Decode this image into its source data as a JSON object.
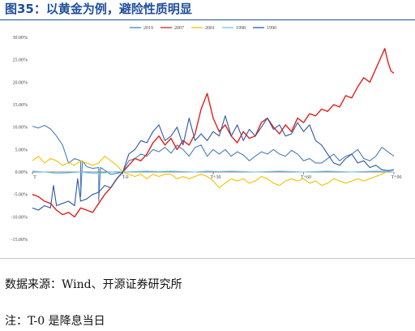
{
  "title": "图35：以黄金为例，避险性质明显",
  "source": "数据来源：Wind、开源证券研究所",
  "note": "注：T-0 是降息当日",
  "chart_data": {
    "type": "line",
    "ylim": [
      -15,
      30
    ],
    "yticks": [
      30,
      25,
      20,
      15,
      10,
      5,
      0,
      -5,
      -10,
      -15
    ],
    "ytick_labels": [
      "30.00%",
      "25.00%",
      "20.00%",
      "15.00%",
      "10.00%",
      "5.00%",
      "0.00%",
      "-5.00%",
      "-10.00%",
      "-15.00%"
    ],
    "xlim": [
      -30,
      90
    ],
    "xticks": [
      -30,
      0,
      30,
      60,
      90
    ],
    "xtick_labels": [
      "T",
      "T-0",
      "T+30",
      "T+60",
      "T+90"
    ],
    "grid": false,
    "legend": "top-center",
    "series": [
      {
        "name": "2019",
        "color": "#4a7ebb",
        "points": [
          [
            -30,
            10.2
          ],
          [
            -28,
            9.8
          ],
          [
            -26,
            10.4
          ],
          [
            -24,
            9.6
          ],
          [
            -22,
            8.0
          ],
          [
            -20,
            6.0
          ],
          [
            -18,
            2.0
          ],
          [
            -16,
            3.0
          ],
          [
            -14,
            2.5
          ],
          [
            -12,
            1.2
          ],
          [
            -10,
            0.8
          ],
          [
            -8,
            1.0
          ],
          [
            -6,
            0.4
          ],
          [
            -4,
            -0.5
          ],
          [
            -2,
            -0.3
          ],
          [
            0,
            0
          ],
          [
            2,
            2.5
          ],
          [
            4,
            3.0
          ],
          [
            6,
            4.0
          ],
          [
            8,
            3.5
          ],
          [
            10,
            5.0
          ],
          [
            12,
            4.5
          ],
          [
            14,
            5.5
          ],
          [
            16,
            4.2
          ],
          [
            18,
            6.0
          ],
          [
            20,
            5.0
          ],
          [
            22,
            3.5
          ],
          [
            24,
            5.5
          ],
          [
            26,
            6.0
          ],
          [
            28,
            3.5
          ],
          [
            30,
            5.0
          ],
          [
            32,
            4.0
          ],
          [
            34,
            5.0
          ],
          [
            36,
            3.5
          ],
          [
            38,
            4.5
          ],
          [
            40,
            3.8
          ],
          [
            42,
            2.5
          ],
          [
            44,
            3.5
          ],
          [
            46,
            4.5
          ],
          [
            48,
            4.0
          ],
          [
            50,
            5.0
          ],
          [
            52,
            4.0
          ],
          [
            54,
            3.5
          ],
          [
            56,
            4.8
          ],
          [
            58,
            4.0
          ],
          [
            60,
            2.5
          ],
          [
            62,
            3.0
          ],
          [
            64,
            2.0
          ],
          [
            66,
            2.0
          ],
          [
            68,
            3.0
          ],
          [
            70,
            4.0
          ],
          [
            72,
            2.5
          ],
          [
            74,
            3.5
          ],
          [
            76,
            4.0
          ],
          [
            78,
            5.0
          ],
          [
            80,
            3.0
          ],
          [
            82,
            2.5
          ],
          [
            84,
            3.5
          ],
          [
            86,
            5.5
          ],
          [
            88,
            4.5
          ],
          [
            90,
            3.5
          ]
        ]
      },
      {
        "name": "2007",
        "color": "#e0201b",
        "points": [
          [
            -30,
            -5.0
          ],
          [
            -28,
            -5.5
          ],
          [
            -26,
            -6.5
          ],
          [
            -24,
            -7.0
          ],
          [
            -22,
            -8.5
          ],
          [
            -20,
            -9.5
          ],
          [
            -18,
            -9.0
          ],
          [
            -16,
            -10.0
          ],
          [
            -14,
            -8.0
          ],
          [
            -12,
            -8.5
          ],
          [
            -10,
            -9.0
          ],
          [
            -8,
            -7.0
          ],
          [
            -6,
            -5.0
          ],
          [
            -4,
            -3.5
          ],
          [
            -2,
            -1.5
          ],
          [
            0,
            0
          ],
          [
            2,
            1.5
          ],
          [
            4,
            3.0
          ],
          [
            6,
            2.5
          ],
          [
            8,
            4.0
          ],
          [
            10,
            6.5
          ],
          [
            12,
            8.0
          ],
          [
            14,
            6.0
          ],
          [
            16,
            7.5
          ],
          [
            18,
            5.0
          ],
          [
            20,
            7.0
          ],
          [
            22,
            6.0
          ],
          [
            24,
            8.5
          ],
          [
            26,
            14.0
          ],
          [
            28,
            17.5
          ],
          [
            30,
            12.0
          ],
          [
            32,
            9.0
          ],
          [
            34,
            10.5
          ],
          [
            36,
            8.0
          ],
          [
            38,
            6.5
          ],
          [
            40,
            9.0
          ],
          [
            42,
            7.5
          ],
          [
            44,
            8.0
          ],
          [
            46,
            11.0
          ],
          [
            48,
            12.0
          ],
          [
            50,
            10.0
          ],
          [
            52,
            8.5
          ],
          [
            54,
            10.5
          ],
          [
            56,
            9.0
          ],
          [
            58,
            12.0
          ],
          [
            60,
            11.0
          ],
          [
            62,
            13.0
          ],
          [
            64,
            12.5
          ],
          [
            66,
            14.0
          ],
          [
            68,
            13.5
          ],
          [
            70,
            15.0
          ],
          [
            72,
            14.5
          ],
          [
            74,
            17.0
          ],
          [
            76,
            16.5
          ],
          [
            78,
            19.0
          ],
          [
            80,
            21.0
          ],
          [
            82,
            20.0
          ],
          [
            84,
            23.0
          ],
          [
            86,
            26.0
          ],
          [
            87,
            27.5
          ],
          [
            88,
            24.5
          ],
          [
            89,
            22.5
          ],
          [
            90,
            22.0
          ]
        ]
      },
      {
        "name": "2001",
        "color": "#f2c200",
        "points": [
          [
            -30,
            2.5
          ],
          [
            -28,
            3.5
          ],
          [
            -26,
            2.0
          ],
          [
            -24,
            3.0
          ],
          [
            -22,
            2.5
          ],
          [
            -20,
            1.5
          ],
          [
            -18,
            2.0
          ],
          [
            -16,
            1.5
          ],
          [
            -14,
            2.5
          ],
          [
            -12,
            2.0
          ],
          [
            -10,
            1.5
          ],
          [
            -8,
            2.0
          ],
          [
            -6,
            3.5
          ],
          [
            -4,
            2.5
          ],
          [
            -2,
            1.5
          ],
          [
            0,
            0
          ],
          [
            2,
            -0.5
          ],
          [
            4,
            -1.0
          ],
          [
            6,
            -0.5
          ],
          [
            8,
            -1.5
          ],
          [
            10,
            -0.5
          ],
          [
            12,
            -1.0
          ],
          [
            14,
            -0.5
          ],
          [
            16,
            -0.5
          ],
          [
            18,
            -1.5
          ],
          [
            20,
            -1.0
          ],
          [
            22,
            -1.5
          ],
          [
            24,
            -1.0
          ],
          [
            26,
            -0.5
          ],
          [
            28,
            -1.0
          ],
          [
            30,
            -2.0
          ],
          [
            32,
            -3.5
          ],
          [
            34,
            -2.5
          ],
          [
            36,
            -1.5
          ],
          [
            38,
            -2.0
          ],
          [
            40,
            -1.5
          ],
          [
            42,
            -2.5
          ],
          [
            44,
            -2.0
          ],
          [
            46,
            -1.0
          ],
          [
            48,
            -1.5
          ],
          [
            50,
            -2.5
          ],
          [
            52,
            -3.0
          ],
          [
            54,
            -2.0
          ],
          [
            56,
            -1.5
          ],
          [
            58,
            -2.0
          ],
          [
            60,
            -1.5
          ],
          [
            62,
            -2.5
          ],
          [
            64,
            -2.0
          ],
          [
            66,
            -3.0
          ],
          [
            68,
            -2.5
          ],
          [
            70,
            -1.5
          ],
          [
            72,
            -2.0
          ],
          [
            74,
            -2.5
          ],
          [
            76,
            -2.0
          ],
          [
            78,
            -1.5
          ],
          [
            80,
            -2.0
          ],
          [
            82,
            -1.5
          ],
          [
            84,
            -1.0
          ],
          [
            86,
            -0.5
          ],
          [
            88,
            0.2
          ],
          [
            90,
            0.5
          ]
        ]
      },
      {
        "name": "1998",
        "color": "#6fc4ea",
        "points": [
          [
            -30,
            0.2
          ],
          [
            -26,
            0.0
          ],
          [
            -22,
            -0.3
          ],
          [
            -18,
            -0.2
          ],
          [
            -14,
            0.0
          ],
          [
            -10,
            -0.3
          ],
          [
            -6,
            -0.2
          ],
          [
            -2,
            0.1
          ],
          [
            0,
            0
          ],
          [
            4,
            0.1
          ],
          [
            8,
            0.2
          ],
          [
            12,
            0.1
          ],
          [
            16,
            0.2
          ],
          [
            20,
            0.1
          ],
          [
            24,
            0.0
          ],
          [
            28,
            0.2
          ],
          [
            32,
            0.1
          ],
          [
            36,
            0.2
          ],
          [
            40,
            0.1
          ],
          [
            44,
            0.0
          ],
          [
            48,
            0.1
          ],
          [
            52,
            0.2
          ],
          [
            56,
            0.1
          ],
          [
            60,
            0.0
          ],
          [
            64,
            0.1
          ],
          [
            68,
            0.2
          ],
          [
            72,
            0.1
          ],
          [
            76,
            0.0
          ],
          [
            80,
            0.1
          ],
          [
            84,
            0.2
          ],
          [
            88,
            0.1
          ],
          [
            90,
            0.0
          ]
        ]
      },
      {
        "name": "1990",
        "color": "#3057a6",
        "points": [
          [
            -30,
            -8.0
          ],
          [
            -28,
            -8.5
          ],
          [
            -26,
            -7.5
          ],
          [
            -24,
            -8.0
          ],
          [
            -23,
            -3.0
          ],
          [
            -22,
            -7.5
          ],
          [
            -20,
            -7.0
          ],
          [
            -18,
            -6.5
          ],
          [
            -16,
            -7.5
          ],
          [
            -15,
            -1.5
          ],
          [
            -14,
            -6.5
          ],
          [
            -12,
            -6.0
          ],
          [
            -10,
            -5.0
          ],
          [
            -8,
            -4.5
          ],
          [
            -6,
            -3.0
          ],
          [
            -4,
            -3.5
          ],
          [
            -2,
            -1.5
          ],
          [
            0,
            0
          ],
          [
            2,
            4.0
          ],
          [
            4,
            5.0
          ],
          [
            6,
            7.0
          ],
          [
            8,
            6.5
          ],
          [
            10,
            9.0
          ],
          [
            12,
            10.5
          ],
          [
            14,
            7.0
          ],
          [
            16,
            8.0
          ],
          [
            18,
            10.0
          ],
          [
            20,
            6.0
          ],
          [
            22,
            12.0
          ],
          [
            24,
            7.0
          ],
          [
            26,
            8.5
          ],
          [
            28,
            7.0
          ],
          [
            30,
            9.0
          ],
          [
            32,
            8.0
          ],
          [
            34,
            12.5
          ],
          [
            36,
            8.0
          ],
          [
            38,
            10.5
          ],
          [
            40,
            7.0
          ],
          [
            42,
            9.5
          ],
          [
            44,
            8.0
          ],
          [
            46,
            10.0
          ],
          [
            48,
            12.0
          ],
          [
            50,
            9.5
          ],
          [
            52,
            10.5
          ],
          [
            54,
            8.0
          ],
          [
            56,
            8.5
          ],
          [
            58,
            11.0
          ],
          [
            60,
            9.0
          ],
          [
            62,
            10.5
          ],
          [
            64,
            7.0
          ],
          [
            66,
            6.0
          ],
          [
            68,
            4.0
          ],
          [
            70,
            2.0
          ],
          [
            72,
            1.5
          ],
          [
            74,
            3.0
          ],
          [
            76,
            4.0
          ],
          [
            78,
            2.0
          ],
          [
            80,
            2.5
          ],
          [
            82,
            1.0
          ],
          [
            84,
            1.5
          ],
          [
            86,
            0.5
          ],
          [
            88,
            0.3
          ],
          [
            90,
            0.5
          ]
        ]
      }
    ],
    "spikes": [
      {
        "series": "2019",
        "x": -14,
        "y": -5.5
      },
      {
        "series": "2019",
        "x": -8,
        "y": -6.5
      }
    ]
  }
}
